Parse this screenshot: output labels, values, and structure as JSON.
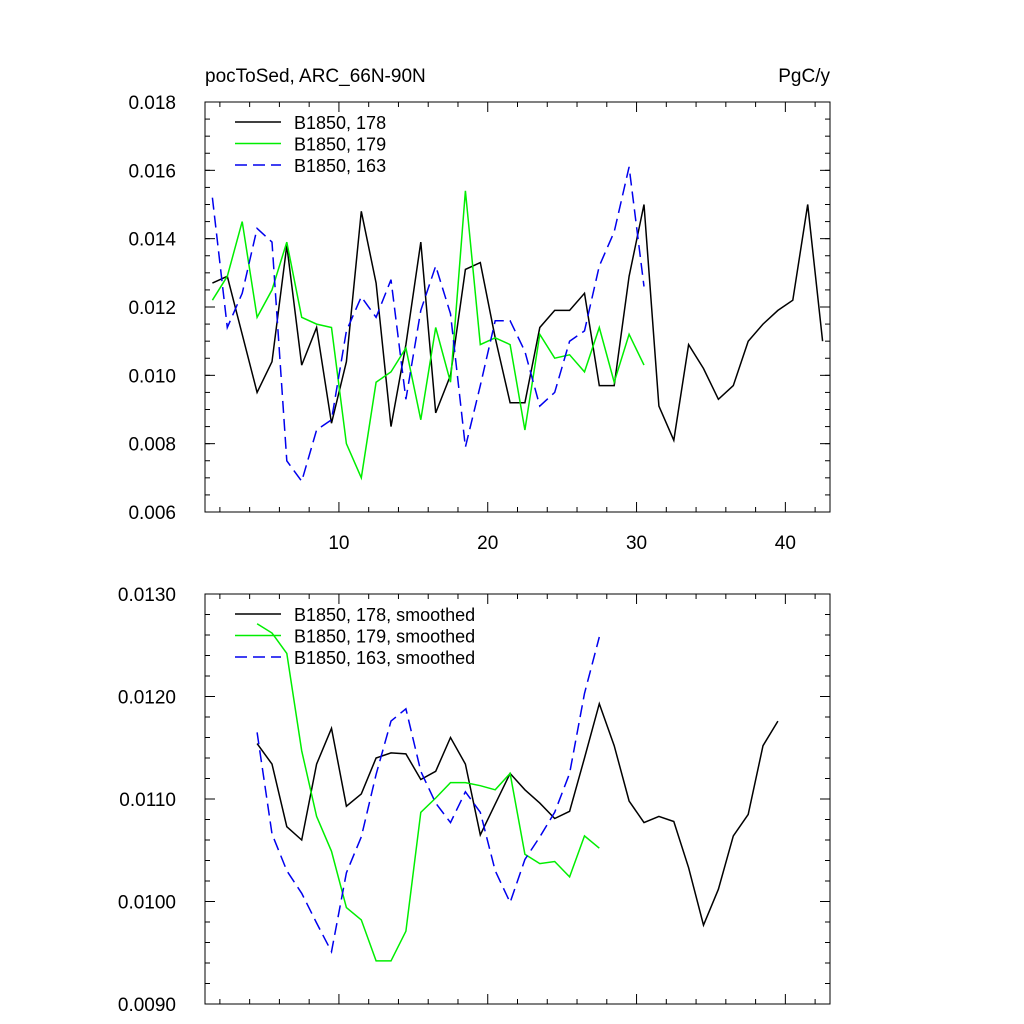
{
  "chart_data": [
    {
      "type": "line",
      "title_left": "pocToSed, ARC_66N-90N",
      "title_right": "PgC/y",
      "xlim": [
        1,
        43
      ],
      "ylim": [
        0.006,
        0.018
      ],
      "x_ticks": [
        10,
        20,
        30,
        40
      ],
      "x_tick_labels": [
        "10",
        "20",
        "30",
        "40"
      ],
      "y_ticks": [
        0.006,
        0.008,
        0.01,
        0.012,
        0.014,
        0.016,
        0.018
      ],
      "y_tick_labels": [
        "0.006",
        "0.008",
        "0.010",
        "0.012",
        "0.014",
        "0.016",
        "0.018"
      ],
      "legend_position": "top-left",
      "series": [
        {
          "name": "B1850, 178",
          "color": "#000000",
          "dash": "solid",
          "x": [
            1.5,
            2.5,
            3.5,
            4.5,
            5.5,
            6.5,
            7.5,
            8.5,
            9.5,
            10.5,
            11.5,
            12.5,
            13.5,
            14.5,
            15.5,
            16.5,
            17.5,
            18.5,
            19.5,
            20.5,
            21.5,
            22.5,
            23.5,
            24.5,
            25.5,
            26.5,
            27.5,
            28.5,
            29.5,
            30.5,
            31.5,
            32.5,
            33.5,
            34.5,
            35.5,
            36.5,
            37.5,
            38.5,
            39.5,
            40.5,
            41.5,
            42.5
          ],
          "y": [
            0.0127,
            0.0129,
            0.0112,
            0.0095,
            0.0104,
            0.0138,
            0.0103,
            0.0114,
            0.0086,
            0.0104,
            0.0148,
            0.0127,
            0.0085,
            0.0109,
            0.0139,
            0.0089,
            0.01,
            0.0131,
            0.0133,
            0.0111,
            0.0092,
            0.0092,
            0.0114,
            0.0119,
            0.0119,
            0.0124,
            0.0097,
            0.0097,
            0.0129,
            0.015,
            0.0091,
            0.0081,
            0.0109,
            0.0102,
            0.0093,
            0.0097,
            0.011,
            0.0115,
            0.0119,
            0.0122,
            0.015,
            0.011
          ]
        },
        {
          "name": "B1850, 179",
          "color": "#00ee00",
          "dash": "solid",
          "x": [
            1.5,
            2.5,
            3.5,
            4.5,
            5.5,
            6.5,
            7.5,
            8.5,
            9.5,
            10.5,
            11.5,
            12.5,
            13.5,
            14.5,
            15.5,
            16.5,
            17.5,
            18.5,
            19.5,
            20.5,
            21.5,
            22.5,
            23.5,
            24.5,
            25.5,
            26.5,
            27.5,
            28.5,
            29.5,
            30.5
          ],
          "y": [
            0.0122,
            0.0129,
            0.0145,
            0.0117,
            0.0125,
            0.0139,
            0.0117,
            0.0115,
            0.0114,
            0.008,
            0.007,
            0.0098,
            0.0101,
            0.0108,
            0.0087,
            0.0114,
            0.0098,
            0.0154,
            0.0109,
            0.0111,
            0.0109,
            0.0084,
            0.0112,
            0.0105,
            0.0106,
            0.0101,
            0.0114,
            0.0098,
            0.0112,
            0.0103
          ]
        },
        {
          "name": "B1850, 163",
          "color": "#0000ee",
          "dash": "dashed",
          "x": [
            1.5,
            2.5,
            3.5,
            4.5,
            5.5,
            6.5,
            7.5,
            8.5,
            9.5,
            10.5,
            11.5,
            12.5,
            13.5,
            14.5,
            15.5,
            16.5,
            17.5,
            18.5,
            19.5,
            20.5,
            21.5,
            22.5,
            23.5,
            24.5,
            25.5,
            26.5,
            27.5,
            28.5,
            29.5,
            30.5
          ],
          "y": [
            0.0152,
            0.0114,
            0.0124,
            0.0143,
            0.0139,
            0.0075,
            0.0069,
            0.0084,
            0.0087,
            0.0113,
            0.0123,
            0.0117,
            0.0128,
            0.0093,
            0.0119,
            0.0132,
            0.0118,
            0.0079,
            0.0097,
            0.0116,
            0.0116,
            0.0107,
            0.0091,
            0.0095,
            0.011,
            0.0113,
            0.0132,
            0.0142,
            0.0161,
            0.0126
          ]
        }
      ]
    },
    {
      "type": "line",
      "xlim": [
        1,
        43
      ],
      "ylim": [
        0.009,
        0.013
      ],
      "x_ticks": [
        10,
        20,
        30,
        40
      ],
      "y_ticks": [
        0.009,
        0.01,
        0.011,
        0.012,
        0.013
      ],
      "y_tick_labels": [
        "0.0090",
        "0.0100",
        "0.0110",
        "0.0120",
        "0.0130"
      ],
      "legend_position": "top-left",
      "series": [
        {
          "name": "B1850, 178, smoothed",
          "color": "#000000",
          "dash": "solid",
          "x": [
            4.5,
            5.5,
            6.5,
            7.5,
            8.5,
            9.5,
            10.5,
            11.5,
            12.5,
            13.5,
            14.5,
            15.5,
            16.5,
            17.5,
            18.5,
            19.5,
            20.5,
            21.5,
            22.5,
            23.5,
            24.5,
            25.5,
            26.5,
            27.5,
            28.5,
            29.5,
            30.5,
            31.5,
            32.5,
            33.5,
            34.5,
            35.5,
            36.5,
            37.5,
            38.5,
            39.5
          ],
          "y": [
            0.01154,
            0.01134,
            0.01073,
            0.0106,
            0.01134,
            0.01169,
            0.01093,
            0.01105,
            0.0114,
            0.01145,
            0.01144,
            0.01119,
            0.01127,
            0.0116,
            0.01134,
            0.01065,
            0.01095,
            0.01125,
            0.01109,
            0.01096,
            0.01081,
            0.01088,
            0.0114,
            0.01193,
            0.01152,
            0.01098,
            0.01077,
            0.01083,
            0.01078,
            0.01033,
            0.00977,
            0.01012,
            0.01064,
            0.01085,
            0.01152,
            0.01176
          ]
        },
        {
          "name": "B1850, 179, smoothed",
          "color": "#00ee00",
          "dash": "solid",
          "x": [
            4.5,
            5.5,
            6.5,
            7.5,
            8.5,
            9.5,
            10.5,
            11.5,
            12.5,
            13.5,
            14.5,
            15.5,
            16.5,
            17.5,
            18.5,
            19.5,
            20.5,
            21.5,
            22.5,
            23.5,
            24.5,
            25.5,
            26.5,
            27.5
          ],
          "y": [
            0.01271,
            0.01262,
            0.01242,
            0.01147,
            0.01083,
            0.01049,
            0.00994,
            0.00982,
            0.00942,
            0.00942,
            0.00971,
            0.01087,
            0.01101,
            0.01116,
            0.01116,
            0.01113,
            0.01109,
            0.01125,
            0.01046,
            0.01037,
            0.01039,
            0.01024,
            0.01064,
            0.01052
          ]
        },
        {
          "name": "B1850, 163, smoothed",
          "color": "#0000ee",
          "dash": "dashed",
          "x": [
            4.5,
            5.5,
            6.5,
            7.5,
            8.5,
            9.5,
            10.5,
            11.5,
            12.5,
            13.5,
            14.5,
            15.5,
            16.5,
            17.5,
            18.5,
            19.5,
            20.5,
            21.5,
            22.5,
            23.5,
            24.5,
            25.5,
            26.5,
            27.5
          ],
          "y": [
            0.01165,
            0.01066,
            0.0103,
            0.01008,
            0.00979,
            0.00951,
            0.01028,
            0.01063,
            0.01124,
            0.01176,
            0.01188,
            0.01127,
            0.01096,
            0.01077,
            0.01107,
            0.01087,
            0.0103,
            0.00999,
            0.01041,
            0.01063,
            0.01087,
            0.01125,
            0.01203,
            0.01258
          ]
        }
      ]
    }
  ]
}
